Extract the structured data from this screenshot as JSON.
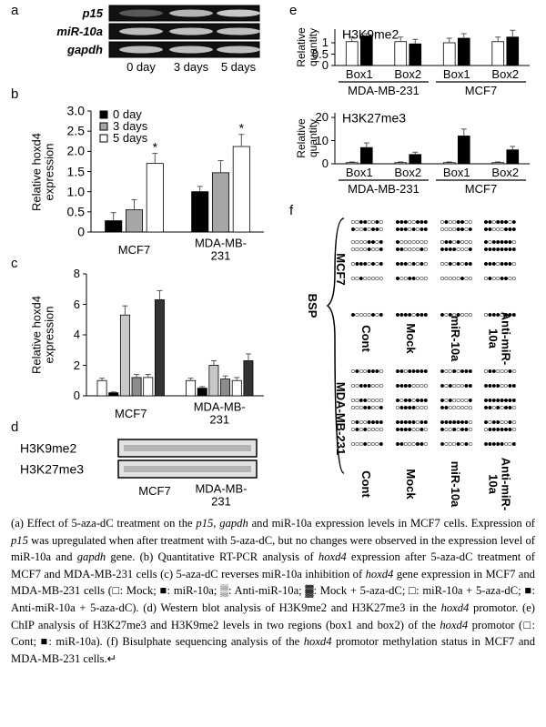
{
  "panel_labels": [
    "a",
    "b",
    "c",
    "d",
    "e",
    "f"
  ],
  "panel_a": {
    "rows": [
      "p15",
      "miR-10a",
      "gapdh"
    ],
    "lanes": [
      "0 day",
      "3 days",
      "5 days"
    ]
  },
  "chart_data": [
    {
      "type": "bar",
      "ylabel": "Relative hoxd4 expression",
      "categories": [
        "MCF7",
        "MDA-MB-231"
      ],
      "series": [
        {
          "name": "0 day",
          "color": "#000000",
          "values": [
            0.28,
            1.0
          ],
          "errors": [
            0.2,
            0.13
          ]
        },
        {
          "name": "3 days",
          "color": "#a6a6a6",
          "values": [
            0.55,
            1.47
          ],
          "errors": [
            0.25,
            0.3
          ]
        },
        {
          "name": "5 days",
          "color": "#ffffff",
          "values": [
            1.7,
            2.12
          ],
          "errors": [
            0.25,
            0.3
          ]
        }
      ],
      "ylim": [
        0,
        3
      ],
      "yticks": [
        0,
        0.5,
        {
          "value": 1,
          "label": "1.0"
        },
        1.5,
        {
          "value": 2,
          "label": "2.0"
        },
        2.5,
        {
          "value": 3,
          "label": "3.0"
        }
      ],
      "annotations": [
        "*",
        "*"
      ],
      "legend": "upper left"
    },
    {
      "type": "bar",
      "ylabel": "Relative hoxd4 expression",
      "categories": [
        "MCF7",
        "MDA-MB-231"
      ],
      "series": [
        {
          "color": "#ffffff",
          "values": [
            1.0,
            1.0
          ],
          "errors": [
            0.15,
            0.15
          ]
        },
        {
          "color": "#000000",
          "values": [
            0.2,
            0.5
          ],
          "errors": [
            0.05,
            0.1
          ]
        },
        {
          "color": "#c8c8c8",
          "values": [
            5.3,
            2.0
          ],
          "errors": [
            0.6,
            0.3
          ]
        },
        {
          "color": "#8c8c8c",
          "values": [
            1.2,
            1.1
          ],
          "errors": [
            0.2,
            0.2
          ]
        },
        {
          "color": "#ffffff",
          "values": [
            1.2,
            1.0
          ],
          "errors": [
            0.2,
            0.2
          ]
        },
        {
          "color": "#333333",
          "values": [
            6.3,
            2.3
          ],
          "errors": [
            0.6,
            0.45
          ]
        }
      ],
      "ylim": [
        0,
        8
      ],
      "yticks": [
        0,
        2,
        4,
        6,
        8
      ]
    },
    {
      "type": "bar",
      "title": "H3K9me2",
      "ylabel": "Relative quantity",
      "categories": [
        "Box1",
        "Box2",
        "Box1",
        "Box2"
      ],
      "groups": [
        "MDA-MB-231",
        "MCF7"
      ],
      "series": [
        {
          "color": "#ffffff",
          "values": [
            1.05,
            1.05,
            1.0,
            1.05
          ],
          "errors": [
            0.2,
            0.2,
            0.2,
            0.2
          ]
        },
        {
          "color": "#000000",
          "values": [
            1.3,
            0.95,
            1.2,
            1.25
          ],
          "errors": [
            0.1,
            0.2,
            0.2,
            0.3
          ]
        }
      ],
      "ylim": [
        0,
        1.6
      ],
      "yticks": [
        0,
        0.5,
        1
      ]
    },
    {
      "type": "bar",
      "title": "H3K27me3",
      "ylabel": "Relative quantity",
      "categories": [
        "Box1",
        "Box2",
        "Box1",
        "Box2"
      ],
      "groups": [
        "MDA-MB-231",
        "MCF7"
      ],
      "series": [
        {
          "color": "#ffffff",
          "values": [
            0.5,
            0.5,
            0.5,
            0.5
          ],
          "errors": [
            0.3,
            0.3,
            0.3,
            0.3
          ]
        },
        {
          "color": "#000000",
          "values": [
            7,
            4,
            12,
            6
          ],
          "errors": [
            2,
            1,
            3,
            1.5
          ]
        }
      ],
      "ylim": [
        0,
        22
      ],
      "yticks": [
        0,
        10,
        20
      ]
    }
  ],
  "panel_d": {
    "rows": [
      "H3K9me2",
      "H3K27me3"
    ],
    "lanes": [
      "MCF7",
      "MDA-MB-231"
    ]
  },
  "panel_f": {
    "method": "BSP",
    "cells": [
      "MCF7",
      "MDA-MB-231"
    ],
    "lanes": [
      "Cont",
      "Mock",
      "miR-10a",
      "Anti-miR-10a"
    ]
  },
  "caption": [
    {
      "text": "(a) Effect of 5-aza-dC treatment on the "
    },
    {
      "text": "p15",
      "italic": true
    },
    {
      "text": ", "
    },
    {
      "text": "gapdh",
      "italic": true
    },
    {
      "text": " and miR-10a expression levels in MCF7 cells. Expression of "
    },
    {
      "text": "p15",
      "italic": true
    },
    {
      "text": " was upregulated when after treatment with 5-aza-dC, but no changes were observed in the expression level of miR-10a and "
    },
    {
      "text": "gapdh",
      "italic": true
    },
    {
      "text": " gene. (b) Quantitative RT-PCR analysis of "
    },
    {
      "text": "hoxd4",
      "italic": true
    },
    {
      "text": " expression after 5-aza-dC treatment of MCF7 and MDA-MB-231 cells (c) 5-aza-dC reverses miR-10a inhibition of "
    },
    {
      "text": "hoxd4",
      "italic": true
    },
    {
      "text": " gene expression in MCF7  and MDA-MB-231 cells (□: Mock; ■: miR-10a; ▒: Anti-miR-10a; ▓: Mock + 5-aza-dC; □: miR-10a + 5-aza-dC; ■: Anti-miR-10a + 5-aza-dC). (d) Western blot analysis of H3K9me2 and H3K27me3 in the "
    },
    {
      "text": "hoxd4",
      "italic": true
    },
    {
      "text": " promotor. (e) ChIP analysis of H3K27me3 and H3K9me2 levels in two regions (box1 and box2) of the "
    },
    {
      "text": "hoxd4",
      "italic": true
    },
    {
      "text": " promotor (□: Cont; ■: miR-10a). (f) Bisulphate sequencing analysis of the "
    },
    {
      "text": "hoxd4",
      "italic": true
    },
    {
      "text": " promotor methylation status in MCF7 and MDA-MB-231 cells.↵"
    }
  ]
}
